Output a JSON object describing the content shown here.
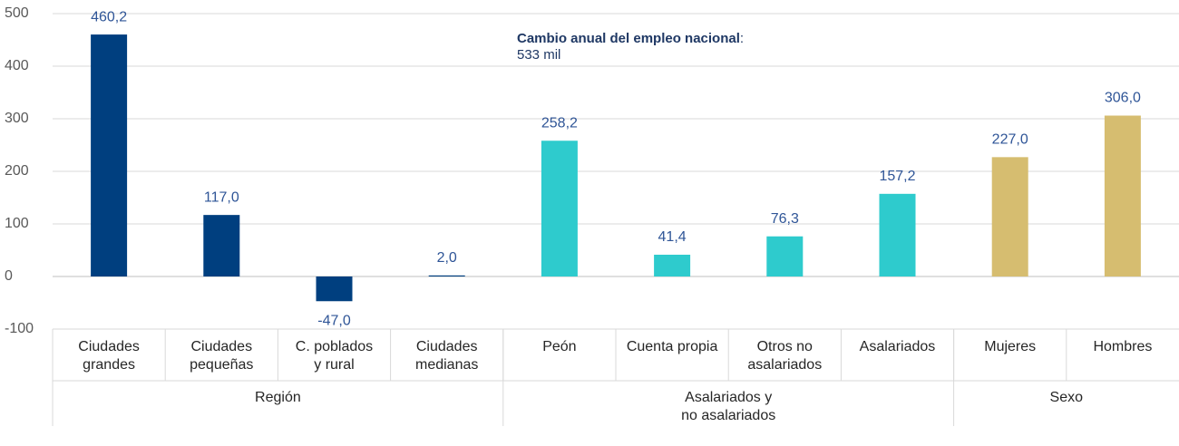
{
  "chart_data": {
    "type": "bar",
    "annotation": {
      "bold": "Cambio anual del empleo nacional",
      "rest": ":",
      "line2": "533 mil"
    },
    "categories": [
      "Ciudades\ngrandes",
      "Ciudades\npequeñas",
      "C. poblados\ny rural",
      "Ciudades\nmedianas",
      "Peón",
      "Cuenta propia",
      "Otros no\nasalariados",
      "Asalariados",
      "Mujeres",
      "Hombres"
    ],
    "values": [
      460.2,
      117.0,
      -47.0,
      2.0,
      258.2,
      41.4,
      76.3,
      157.2,
      227.0,
      306.0
    ],
    "value_labels": [
      "460,2",
      "117,0",
      "-47,0",
      "2,0",
      "258,2",
      "41,4",
      "76,3",
      "157,2",
      "227,0",
      "306,0"
    ],
    "colors": [
      "#003f7f",
      "#003f7f",
      "#003f7f",
      "#003f7f",
      "#2ecbcd",
      "#2ecbcd",
      "#2ecbcd",
      "#2ecbcd",
      "#d6bd70",
      "#d6bd70"
    ],
    "groups": [
      {
        "label": "Región",
        "count": 4
      },
      {
        "label": "Asalariados y\nno asalariados",
        "count": 4
      },
      {
        "label": "Sexo",
        "count": 2
      }
    ],
    "ylim": [
      -100,
      500
    ],
    "yticks": [
      -100,
      0,
      100,
      200,
      300,
      400,
      500
    ],
    "grid": true
  }
}
